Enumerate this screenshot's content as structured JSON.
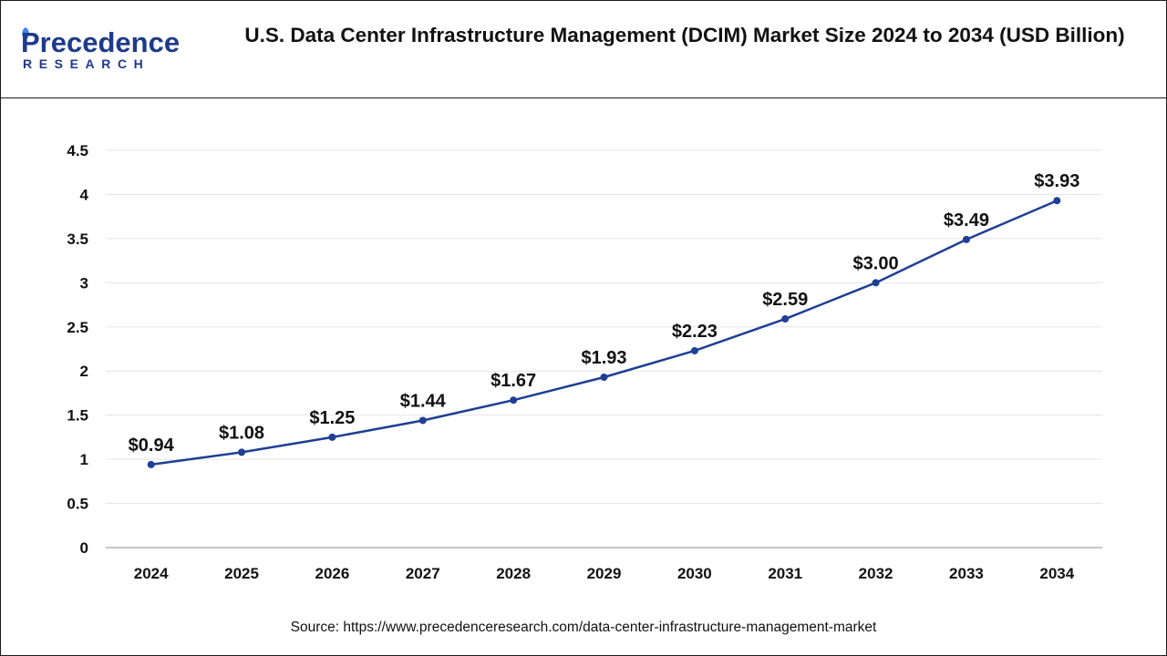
{
  "header": {
    "logo_main": "Precedence",
    "logo_sub": "RESEARCH",
    "title": "U.S. Data Center Infrastructure Management (DCIM) Market Size 2024 to 2034 (USD Billion)"
  },
  "source": "Source: https://www.precedenceresearch.com/data-center-infrastructure-management-market",
  "colors": {
    "brand": "#1e3a8a",
    "line": "#1f3f94",
    "grid": "#e6e6e6",
    "axis": "#b3b3b3"
  },
  "chart_data": {
    "type": "line",
    "title": "U.S. Data Center Infrastructure Management (DCIM) Market Size 2024 to 2034 (USD Billion)",
    "xlabel": "",
    "ylabel": "",
    "categories": [
      "2024",
      "2025",
      "2026",
      "2027",
      "2028",
      "2029",
      "2030",
      "2031",
      "2032",
      "2033",
      "2034"
    ],
    "values": [
      0.94,
      1.08,
      1.25,
      1.44,
      1.67,
      1.93,
      2.23,
      2.59,
      3.0,
      3.49,
      3.93
    ],
    "data_labels": [
      "$0.94",
      "$1.08",
      "$1.25",
      "$1.44",
      "$1.67",
      "$1.93",
      "$2.23",
      "$2.59",
      "$3.00",
      "$3.49",
      "$3.93"
    ],
    "ylim": [
      0,
      4.5
    ],
    "yticks": [
      0,
      0.5,
      1,
      1.5,
      2,
      2.5,
      3,
      3.5,
      4,
      4.5
    ],
    "ytick_labels": [
      "0",
      "0.5",
      "1",
      "1.5",
      "2",
      "2.5",
      "3",
      "3.5",
      "4",
      "4.5"
    ],
    "grid": true,
    "legend": "none"
  }
}
